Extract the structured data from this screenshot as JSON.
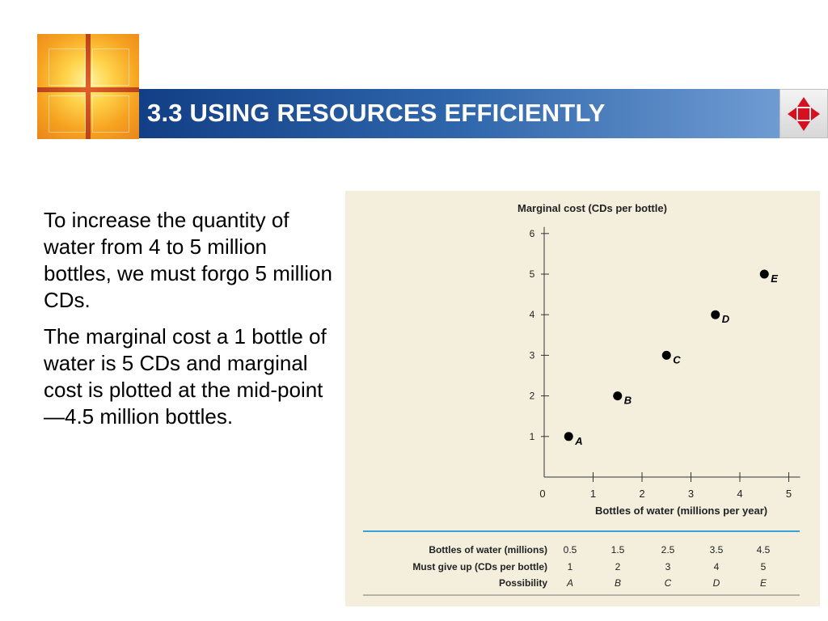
{
  "slide": {
    "title": "3.3 USING RESOURCES EFFICIENTLY",
    "paragraphs": [
      "To increase the quantity of water from 4 to 5 million bottles, we must forgo 5 million CDs.",
      "The marginal cost a 1 bottle of water is 5 CDs and marginal cost is plotted at the mid-point —4.5 million bottles."
    ],
    "nav_icon": "four-way-arrows-icon",
    "colors": {
      "header_start": "#123f86",
      "header_end": "#6f9bd2",
      "panel_bg": "#f3efdc",
      "rule": "#3aa0d8",
      "nav_arrows": "#d6101f"
    }
  },
  "chart_data": {
    "type": "scatter",
    "ylabel": "Marginal cost (CDs per bottle)",
    "xlabel": "Bottles of water (millions per year)",
    "xlim": [
      0,
      5
    ],
    "ylim": [
      0,
      6
    ],
    "x_ticks": [
      "0",
      "1",
      "2",
      "3",
      "4",
      "5"
    ],
    "y_ticks": [
      "1",
      "2",
      "3",
      "4",
      "5",
      "6"
    ],
    "points": [
      {
        "label": "A",
        "x": 0.5,
        "y": 1
      },
      {
        "label": "B",
        "x": 1.5,
        "y": 2
      },
      {
        "label": "C",
        "x": 2.5,
        "y": 3
      },
      {
        "label": "D",
        "x": 3.5,
        "y": 4
      },
      {
        "label": "E",
        "x": 4.5,
        "y": 5
      }
    ],
    "table": {
      "rows": [
        {
          "label": "Bottles of water (millions)",
          "values": [
            "0.5",
            "1.5",
            "2.5",
            "3.5",
            "4.5"
          ]
        },
        {
          "label": "Must give up (CDs per bottle)",
          "values": [
            "1",
            "2",
            "3",
            "4",
            "5"
          ]
        },
        {
          "label": "Possibility",
          "values": [
            "A",
            "B",
            "C",
            "D",
            "E"
          ]
        }
      ]
    }
  }
}
